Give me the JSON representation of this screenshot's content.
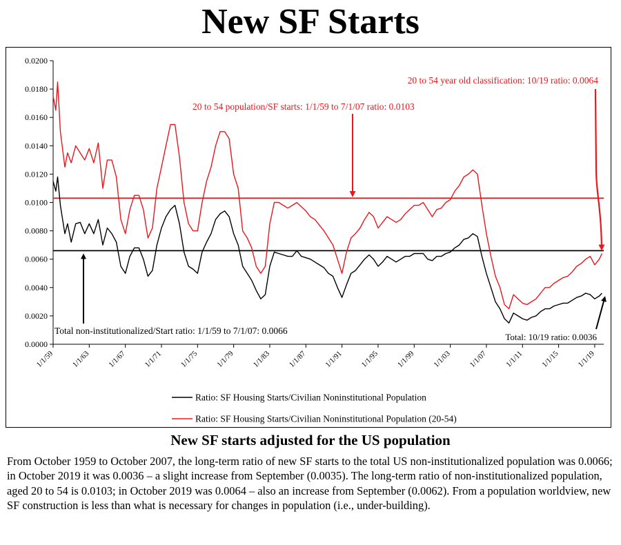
{
  "page": {
    "title": "New SF Starts",
    "subtitle": "New SF starts adjusted for the US population",
    "body": "From October 1959 to October 2007, the long-term ratio of new SF starts to the total US non-institutionalized population was 0.0066; in October 2019 it was 0.0036 – a slight increase from September (0.0035).  The long-term ratio of non-institutionalized population, aged 20 to 54 is 0.0103; in October 2019 was 0.0064 – also an increase from September (0.0062).  From a population worldview, new SF construction is less than what is necessary for changes in population (i.e., under-building)."
  },
  "colors": {
    "total": "#000000",
    "age": "#e8171d",
    "frame": "#000000"
  },
  "chart_data": {
    "type": "line",
    "title": "",
    "xlabel": "",
    "ylabel": "",
    "xlim": [
      1959.0,
      2020.0
    ],
    "ylim": [
      0.0,
      0.02
    ],
    "y_ticks": [
      "0.0000",
      "0.0020",
      "0.0040",
      "0.0060",
      "0.0080",
      "0.0100",
      "0.0120",
      "0.0140",
      "0.0160",
      "0.0180",
      "0.0200"
    ],
    "x_ticks": [
      {
        "label": "1/1/59",
        "x": 1959
      },
      {
        "label": "1/1/63",
        "x": 1963
      },
      {
        "label": "1/1/67",
        "x": 1967
      },
      {
        "label": "1/1/71",
        "x": 1971
      },
      {
        "label": "1/1/75",
        "x": 1975
      },
      {
        "label": "1/1/79",
        "x": 1979
      },
      {
        "label": "1/1/83",
        "x": 1983
      },
      {
        "label": "1/1/87",
        "x": 1987
      },
      {
        "label": "1/1/91",
        "x": 1991
      },
      {
        "label": "1/1/95",
        "x": 1995
      },
      {
        "label": "1/1/99",
        "x": 1999
      },
      {
        "label": "1/1/03",
        "x": 2003
      },
      {
        "label": "1/1/07",
        "x": 2007
      },
      {
        "label": "1/1/11",
        "x": 2011
      },
      {
        "label": "1/1/15",
        "x": 2015
      },
      {
        "label": "1/1/19",
        "x": 2019
      }
    ],
    "grid": false,
    "legend_position": "bottom",
    "series": [
      {
        "name": "Ratio: SF Housing Starts/Civilian Noninstitutional Population",
        "color": "#000000",
        "x": [
          1959.0,
          1959.3,
          1959.5,
          1959.8,
          1960.0,
          1960.3,
          1960.6,
          1961.0,
          1961.5,
          1962.0,
          1962.5,
          1963.0,
          1963.5,
          1964.0,
          1964.5,
          1965.0,
          1965.5,
          1966.0,
          1966.5,
          1967.0,
          1967.5,
          1968.0,
          1968.5,
          1969.0,
          1969.5,
          1970.0,
          1970.5,
          1971.0,
          1971.5,
          1972.0,
          1972.5,
          1973.0,
          1973.5,
          1974.0,
          1974.5,
          1975.0,
          1975.5,
          1976.0,
          1976.5,
          1977.0,
          1977.5,
          1978.0,
          1978.5,
          1979.0,
          1979.5,
          1980.0,
          1980.5,
          1981.0,
          1981.5,
          1982.0,
          1982.5,
          1983.0,
          1983.5,
          1984.0,
          1984.5,
          1985.0,
          1985.5,
          1986.0,
          1986.5,
          1987.0,
          1987.5,
          1988.0,
          1988.5,
          1989.0,
          1989.5,
          1990.0,
          1990.5,
          1991.0,
          1991.5,
          1992.0,
          1992.5,
          1993.0,
          1993.5,
          1994.0,
          1994.5,
          1995.0,
          1995.5,
          1996.0,
          1996.5,
          1997.0,
          1997.5,
          1998.0,
          1998.5,
          1999.0,
          1999.5,
          2000.0,
          2000.5,
          2001.0,
          2001.5,
          2002.0,
          2002.5,
          2003.0,
          2003.5,
          2004.0,
          2004.5,
          2005.0,
          2005.5,
          2006.0,
          2006.5,
          2007.0,
          2007.5,
          2008.0,
          2008.5,
          2009.0,
          2009.5,
          2010.0,
          2010.5,
          2011.0,
          2011.5,
          2012.0,
          2012.5,
          2013.0,
          2013.5,
          2014.0,
          2014.5,
          2015.0,
          2015.5,
          2016.0,
          2016.5,
          2017.0,
          2017.5,
          2018.0,
          2018.5,
          2019.0,
          2019.5,
          2019.8
        ],
        "y": [
          0.0115,
          0.0108,
          0.0118,
          0.0098,
          0.009,
          0.0078,
          0.0085,
          0.0072,
          0.0085,
          0.0086,
          0.0078,
          0.0085,
          0.0078,
          0.0088,
          0.007,
          0.0082,
          0.0078,
          0.0072,
          0.0055,
          0.005,
          0.0062,
          0.0068,
          0.0068,
          0.006,
          0.0048,
          0.0052,
          0.007,
          0.0082,
          0.009,
          0.0095,
          0.0098,
          0.0085,
          0.0065,
          0.0055,
          0.0053,
          0.005,
          0.0065,
          0.0072,
          0.0078,
          0.0088,
          0.0092,
          0.0094,
          0.009,
          0.0078,
          0.007,
          0.0055,
          0.005,
          0.0045,
          0.0038,
          0.0032,
          0.0035,
          0.0055,
          0.0065,
          0.0064,
          0.0063,
          0.0062,
          0.0062,
          0.0066,
          0.0062,
          0.0061,
          0.006,
          0.0058,
          0.0056,
          0.0054,
          0.005,
          0.0048,
          0.004,
          0.0033,
          0.0042,
          0.005,
          0.0052,
          0.0056,
          0.006,
          0.0063,
          0.006,
          0.0055,
          0.0058,
          0.0062,
          0.006,
          0.0058,
          0.006,
          0.0062,
          0.0062,
          0.0064,
          0.0064,
          0.0064,
          0.006,
          0.0059,
          0.0062,
          0.0062,
          0.0064,
          0.0065,
          0.0068,
          0.007,
          0.0074,
          0.0075,
          0.0078,
          0.0076,
          0.0062,
          0.005,
          0.004,
          0.003,
          0.0025,
          0.0018,
          0.0015,
          0.0022,
          0.002,
          0.0018,
          0.0017,
          0.0019,
          0.002,
          0.0023,
          0.0025,
          0.0025,
          0.0027,
          0.0028,
          0.0029,
          0.0029,
          0.0031,
          0.0033,
          0.0034,
          0.0036,
          0.0035,
          0.0032,
          0.0034,
          0.0036
        ]
      },
      {
        "name": "Ratio: SF Housing Starts/Civilian Noninstitutional Population (20-54)",
        "color": "#e8171d",
        "x": [
          1959.0,
          1959.3,
          1959.5,
          1959.8,
          1960.0,
          1960.3,
          1960.6,
          1961.0,
          1961.5,
          1962.0,
          1962.5,
          1963.0,
          1963.5,
          1964.0,
          1964.5,
          1965.0,
          1965.5,
          1966.0,
          1966.5,
          1967.0,
          1967.5,
          1968.0,
          1968.5,
          1969.0,
          1969.5,
          1970.0,
          1970.5,
          1971.0,
          1971.5,
          1972.0,
          1972.5,
          1973.0,
          1973.5,
          1974.0,
          1974.5,
          1975.0,
          1975.5,
          1976.0,
          1976.5,
          1977.0,
          1977.5,
          1978.0,
          1978.5,
          1979.0,
          1979.5,
          1980.0,
          1980.5,
          1981.0,
          1981.5,
          1982.0,
          1982.5,
          1983.0,
          1983.5,
          1984.0,
          1984.5,
          1985.0,
          1985.5,
          1986.0,
          1986.5,
          1987.0,
          1987.5,
          1988.0,
          1988.5,
          1989.0,
          1989.5,
          1990.0,
          1990.5,
          1991.0,
          1991.5,
          1992.0,
          1992.5,
          1993.0,
          1993.5,
          1994.0,
          1994.5,
          1995.0,
          1995.5,
          1996.0,
          1996.5,
          1997.0,
          1997.5,
          1998.0,
          1998.5,
          1999.0,
          1999.5,
          2000.0,
          2000.5,
          2001.0,
          2001.5,
          2002.0,
          2002.5,
          2003.0,
          2003.5,
          2004.0,
          2004.5,
          2005.0,
          2005.5,
          2006.0,
          2006.5,
          2007.0,
          2007.5,
          2008.0,
          2008.5,
          2009.0,
          2009.5,
          2010.0,
          2010.5,
          2011.0,
          2011.5,
          2012.0,
          2012.5,
          2013.0,
          2013.5,
          2014.0,
          2014.5,
          2015.0,
          2015.5,
          2016.0,
          2016.5,
          2017.0,
          2017.5,
          2018.0,
          2018.5,
          2019.0,
          2019.5,
          2019.8
        ],
        "y": [
          0.0175,
          0.0165,
          0.0185,
          0.015,
          0.014,
          0.0125,
          0.0135,
          0.0128,
          0.014,
          0.0135,
          0.013,
          0.0138,
          0.0128,
          0.0142,
          0.011,
          0.013,
          0.013,
          0.0118,
          0.0088,
          0.0078,
          0.0095,
          0.0105,
          0.0105,
          0.0095,
          0.0075,
          0.0082,
          0.011,
          0.0125,
          0.014,
          0.0155,
          0.0155,
          0.0132,
          0.01,
          0.0085,
          0.008,
          0.008,
          0.01,
          0.0115,
          0.0125,
          0.014,
          0.015,
          0.015,
          0.0145,
          0.012,
          0.011,
          0.008,
          0.0075,
          0.0068,
          0.0055,
          0.005,
          0.0055,
          0.0085,
          0.01,
          0.01,
          0.0098,
          0.0096,
          0.0098,
          0.01,
          0.0097,
          0.0094,
          0.009,
          0.0088,
          0.0084,
          0.008,
          0.0075,
          0.007,
          0.006,
          0.005,
          0.0065,
          0.0075,
          0.0078,
          0.0082,
          0.0088,
          0.0093,
          0.009,
          0.0082,
          0.0086,
          0.009,
          0.0088,
          0.0086,
          0.0088,
          0.0092,
          0.0095,
          0.0098,
          0.0098,
          0.01,
          0.0095,
          0.009,
          0.0095,
          0.0096,
          0.01,
          0.0102,
          0.0108,
          0.0112,
          0.0118,
          0.012,
          0.0123,
          0.012,
          0.0098,
          0.0078,
          0.0062,
          0.0048,
          0.004,
          0.0028,
          0.0025,
          0.0035,
          0.0032,
          0.0029,
          0.0028,
          0.003,
          0.0032,
          0.0036,
          0.004,
          0.004,
          0.0043,
          0.0045,
          0.0047,
          0.0048,
          0.0051,
          0.0055,
          0.0057,
          0.006,
          0.0062,
          0.0056,
          0.006,
          0.0064
        ]
      }
    ],
    "reference_lines": [
      {
        "series": "total",
        "y": 0.0066
      },
      {
        "series": "age",
        "y": 0.0103
      }
    ],
    "annotations": [
      {
        "id": "total-avg",
        "text": "Total non-institutionalized/Start ratio: 1/1/59 to 7/1/07: 0.0066",
        "color": "#000000"
      },
      {
        "id": "age-avg",
        "text": "20 to 54 population/SF starts: 1/1/59 to 7/1/07 ratio: 0.0103",
        "color": "#e8171d"
      },
      {
        "id": "age-latest",
        "text": "20 to 54 year old classification: 10/19 ratio: 0.0064",
        "color": "#e8171d"
      },
      {
        "id": "total-latest",
        "text": "Total: 10/19 ratio: 0.0036",
        "color": "#000000"
      }
    ]
  }
}
